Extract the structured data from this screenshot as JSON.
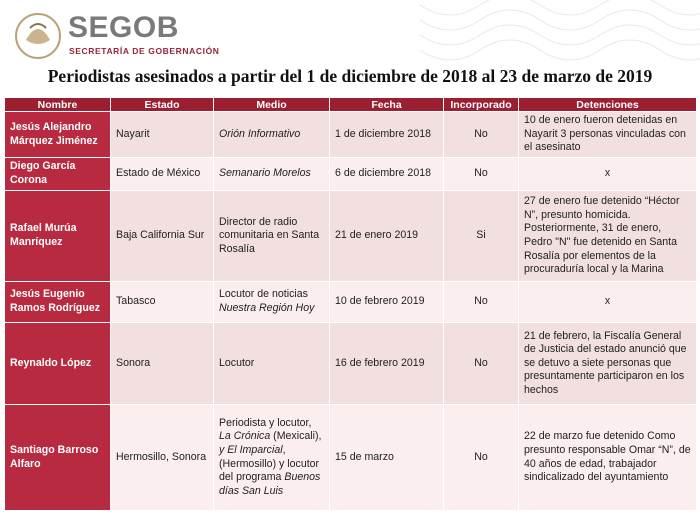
{
  "header": {
    "logo_text": "SEGOB",
    "subtitle": "SECRETARÍA DE GOBERNACIÓN"
  },
  "title": "Periodistas asesinados a partir del 1 de diciembre de 2018 al 23 de marzo de 2019",
  "table": {
    "columns": [
      "Nombre",
      "Estado",
      "Medio",
      "Fecha",
      "Incorporado",
      "Detenciones"
    ],
    "rows": [
      {
        "nombre": "Jesús Alejandro Márquez Jiménez",
        "estado": "Nayarit",
        "medio": [
          {
            "text": "Orión Informativo",
            "italic": true
          }
        ],
        "fecha": "1 de diciembre 2018",
        "incorporado": "No",
        "detenciones": "10 de enero fueron detenidas en Nayarit 3 personas vinculadas con el asesinato"
      },
      {
        "nombre": "Diego García Corona",
        "estado": "Estado de México",
        "medio": [
          {
            "text": "Semanario Morelos",
            "italic": true
          }
        ],
        "fecha": "6 de diciembre 2018",
        "incorporado": "No",
        "detenciones": "x"
      },
      {
        "nombre": "Rafael Murúa Manríquez",
        "estado": "Baja California Sur",
        "medio": [
          {
            "text": "Director de radio comunitaria en Santa Rosalía",
            "italic": false
          }
        ],
        "fecha": "21 de enero 2019",
        "incorporado": "Si",
        "detenciones": "27 de enero fue detenido “Héctor N”, presunto homicida. Posteriormente, 31 de enero, Pedro \"N\" fue detenido en Santa Rosalía por elementos de la procuraduría local y la Marina"
      },
      {
        "nombre": "Jesús Eugenio Ramos Rodríguez",
        "estado": "Tabasco",
        "medio": [
          {
            "text": "Locutor de noticias ",
            "italic": false
          },
          {
            "text": "Nuestra Región Hoy",
            "italic": true
          }
        ],
        "fecha": "10 de febrero 2019",
        "incorporado": "No",
        "detenciones": "x"
      },
      {
        "nombre": "Reynaldo López",
        "estado": "Sonora",
        "medio": [
          {
            "text": "Locutor",
            "italic": false
          }
        ],
        "fecha": "16 de febrero 2019",
        "incorporado": "No",
        "detenciones": "21 de febrero, la Fiscalía General de Justicia del estado anunció que se detuvo a siete personas que presuntamente participaron en los hechos"
      },
      {
        "nombre": "Santiago Barroso Alfaro",
        "estado": "Hermosillo, Sonora",
        "medio": [
          {
            "text": "Periodista y locutor, ",
            "italic": false
          },
          {
            "text": "La Crónica",
            "italic": true
          },
          {
            "text": " (Mexicali), ",
            "italic": false
          },
          {
            "text": "y El Imparcial",
            "italic": true
          },
          {
            "text": ", (Hermosillo)  y locutor del programa ",
            "italic": false
          },
          {
            "text": "Buenos días San Luis",
            "italic": true
          }
        ],
        "fecha": "15 de marzo",
        "incorporado": "No",
        "detenciones": "22 de marzo  fue detenido Como presunto responsable Omar “N”, de 40 años de edad, trabajador sindicalizado del ayuntamiento"
      }
    ]
  }
}
